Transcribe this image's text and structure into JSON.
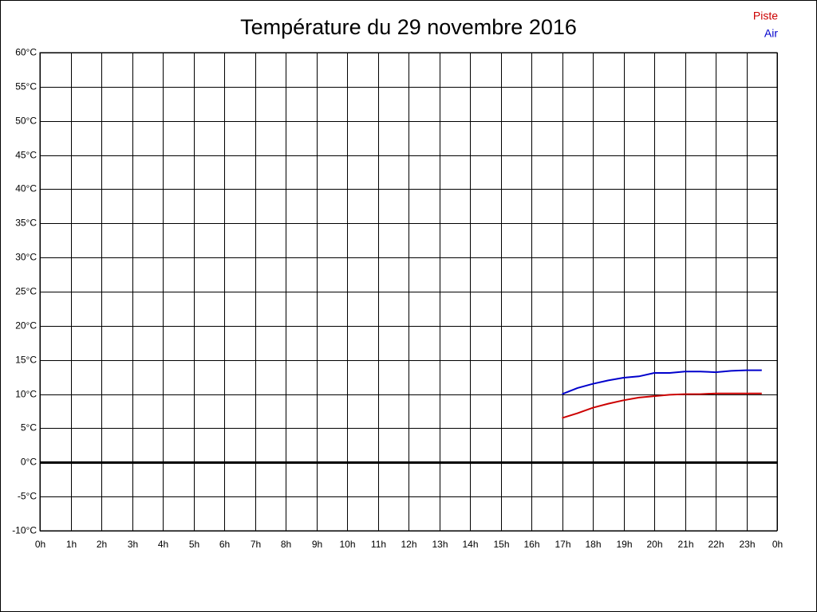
{
  "chart_data": {
    "type": "line",
    "title": "Température du 29 novembre 2016",
    "x": [
      17,
      17.5,
      18,
      18.5,
      19,
      19.5,
      20,
      20.5,
      21,
      21.5,
      22,
      22.5,
      23,
      23.5
    ],
    "series": [
      {
        "name": "Piste",
        "color": "#cc0000",
        "values": [
          6.5,
          7.2,
          8.0,
          8.6,
          9.1,
          9.5,
          9.7,
          9.9,
          10.0,
          10.0,
          10.1,
          10.1,
          10.1,
          10.1
        ]
      },
      {
        "name": "Air",
        "color": "#0000cc",
        "values": [
          10.0,
          10.9,
          11.5,
          12.0,
          12.4,
          12.6,
          13.1,
          13.1,
          13.3,
          13.3,
          13.2,
          13.4,
          13.5,
          13.5
        ]
      }
    ],
    "xlim": [
      0,
      24
    ],
    "xticks": [
      {
        "value": 0,
        "label": "0h"
      },
      {
        "value": 1,
        "label": "1h"
      },
      {
        "value": 2,
        "label": "2h"
      },
      {
        "value": 3,
        "label": "3h"
      },
      {
        "value": 4,
        "label": "4h"
      },
      {
        "value": 5,
        "label": "5h"
      },
      {
        "value": 6,
        "label": "6h"
      },
      {
        "value": 7,
        "label": "7h"
      },
      {
        "value": 8,
        "label": "8h"
      },
      {
        "value": 9,
        "label": "9h"
      },
      {
        "value": 10,
        "label": "10h"
      },
      {
        "value": 11,
        "label": "11h"
      },
      {
        "value": 12,
        "label": "12h"
      },
      {
        "value": 13,
        "label": "13h"
      },
      {
        "value": 14,
        "label": "14h"
      },
      {
        "value": 15,
        "label": "15h"
      },
      {
        "value": 16,
        "label": "16h"
      },
      {
        "value": 17,
        "label": "17h"
      },
      {
        "value": 18,
        "label": "18h"
      },
      {
        "value": 19,
        "label": "19h"
      },
      {
        "value": 20,
        "label": "20h"
      },
      {
        "value": 21,
        "label": "21h"
      },
      {
        "value": 22,
        "label": "22h"
      },
      {
        "value": 23,
        "label": "23h"
      },
      {
        "value": 24,
        "label": "0h"
      }
    ],
    "ylim": [
      -10,
      60
    ],
    "yticks": [
      {
        "value": -10,
        "label": "-10°C"
      },
      {
        "value": -5,
        "label": "-5°C"
      },
      {
        "value": 0,
        "label": "0°C"
      },
      {
        "value": 5,
        "label": "5°C"
      },
      {
        "value": 10,
        "label": "10°C"
      },
      {
        "value": 15,
        "label": "15°C"
      },
      {
        "value": 20,
        "label": "20°C"
      },
      {
        "value": 25,
        "label": "25°C"
      },
      {
        "value": 30,
        "label": "30°C"
      },
      {
        "value": 35,
        "label": "35°C"
      },
      {
        "value": 40,
        "label": "40°C"
      },
      {
        "value": 45,
        "label": "45°C"
      },
      {
        "value": 50,
        "label": "50°C"
      },
      {
        "value": 55,
        "label": "55°C"
      },
      {
        "value": 60,
        "label": "60°C"
      }
    ],
    "grid": true,
    "legend": "top-right"
  }
}
